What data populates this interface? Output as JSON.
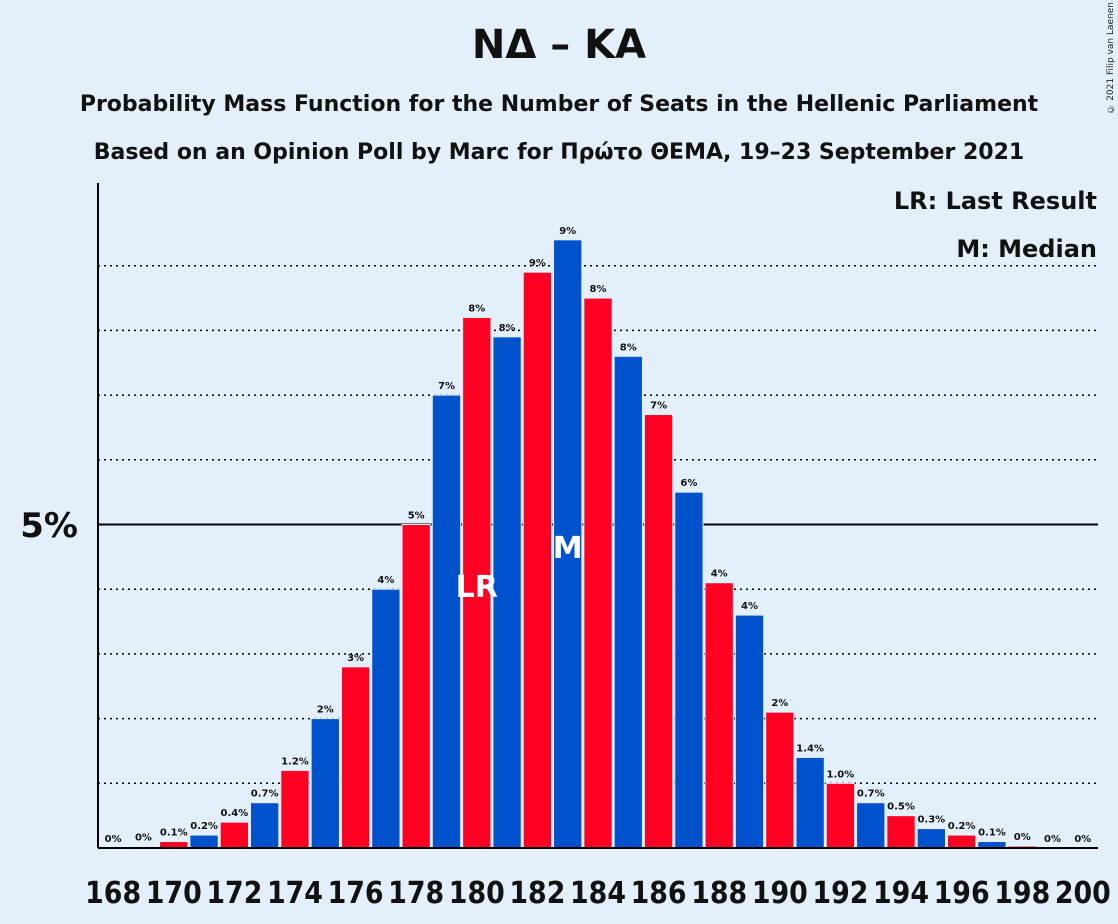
{
  "title": "ΝΔ – ΚΑ",
  "subtitle1": "Probability Mass Function for the Number of Seats in the Hellenic Parliament",
  "subtitle2": "Based on an Opinion Poll by Marc for Πρώτο ΘΕΜΑ, 19–23 September 2021",
  "copyright": "© 2021 Filip van Laenen",
  "legend": {
    "lr": "LR: Last Result",
    "median": "M: Median"
  },
  "colors": {
    "blue": "#0052cc",
    "red": "#ff0022",
    "background": "#e3f0fc"
  },
  "chart_data": {
    "type": "bar",
    "x": [
      168,
      169,
      170,
      171,
      172,
      173,
      174,
      175,
      176,
      177,
      178,
      179,
      180,
      181,
      182,
      183,
      184,
      185,
      186,
      187,
      188,
      189,
      190,
      191,
      192,
      193,
      194,
      195,
      196,
      197,
      198,
      199,
      200
    ],
    "values": [
      0.0,
      0.02,
      0.1,
      0.2,
      0.4,
      0.7,
      1.2,
      2.0,
      2.8,
      4.0,
      5.0,
      7.0,
      8.2,
      7.9,
      8.9,
      9.4,
      8.5,
      7.6,
      6.7,
      5.5,
      4.1,
      3.6,
      2.1,
      1.4,
      1.0,
      0.7,
      0.5,
      0.3,
      0.2,
      0.1,
      0.03,
      0.0,
      0.0
    ],
    "labels": [
      "0%",
      "0%",
      "0.1%",
      "0.2%",
      "0.4%",
      "0.7%",
      "1.2%",
      "2%",
      "3%",
      "4%",
      "5%",
      "7%",
      "8%",
      "8%",
      "9%",
      "9%",
      "8%",
      "8%",
      "7%",
      "6%",
      "4%",
      "4%",
      "2%",
      "1.4%",
      "1.0%",
      "0.7%",
      "0.5%",
      "0.3%",
      "0.2%",
      "0.1%",
      "0%",
      "0%",
      "0%"
    ],
    "tick_labels": [
      "168",
      "170",
      "172",
      "174",
      "176",
      "178",
      "180",
      "182",
      "184",
      "186",
      "188",
      "190",
      "192",
      "194",
      "196",
      "198",
      "200"
    ],
    "ytick_label": "5%",
    "ylim": [
      0,
      10.3
    ],
    "last_result_seat": 180,
    "last_result_marker": "LR",
    "median_seat": 183,
    "median_marker": "M",
    "grid": true
  }
}
